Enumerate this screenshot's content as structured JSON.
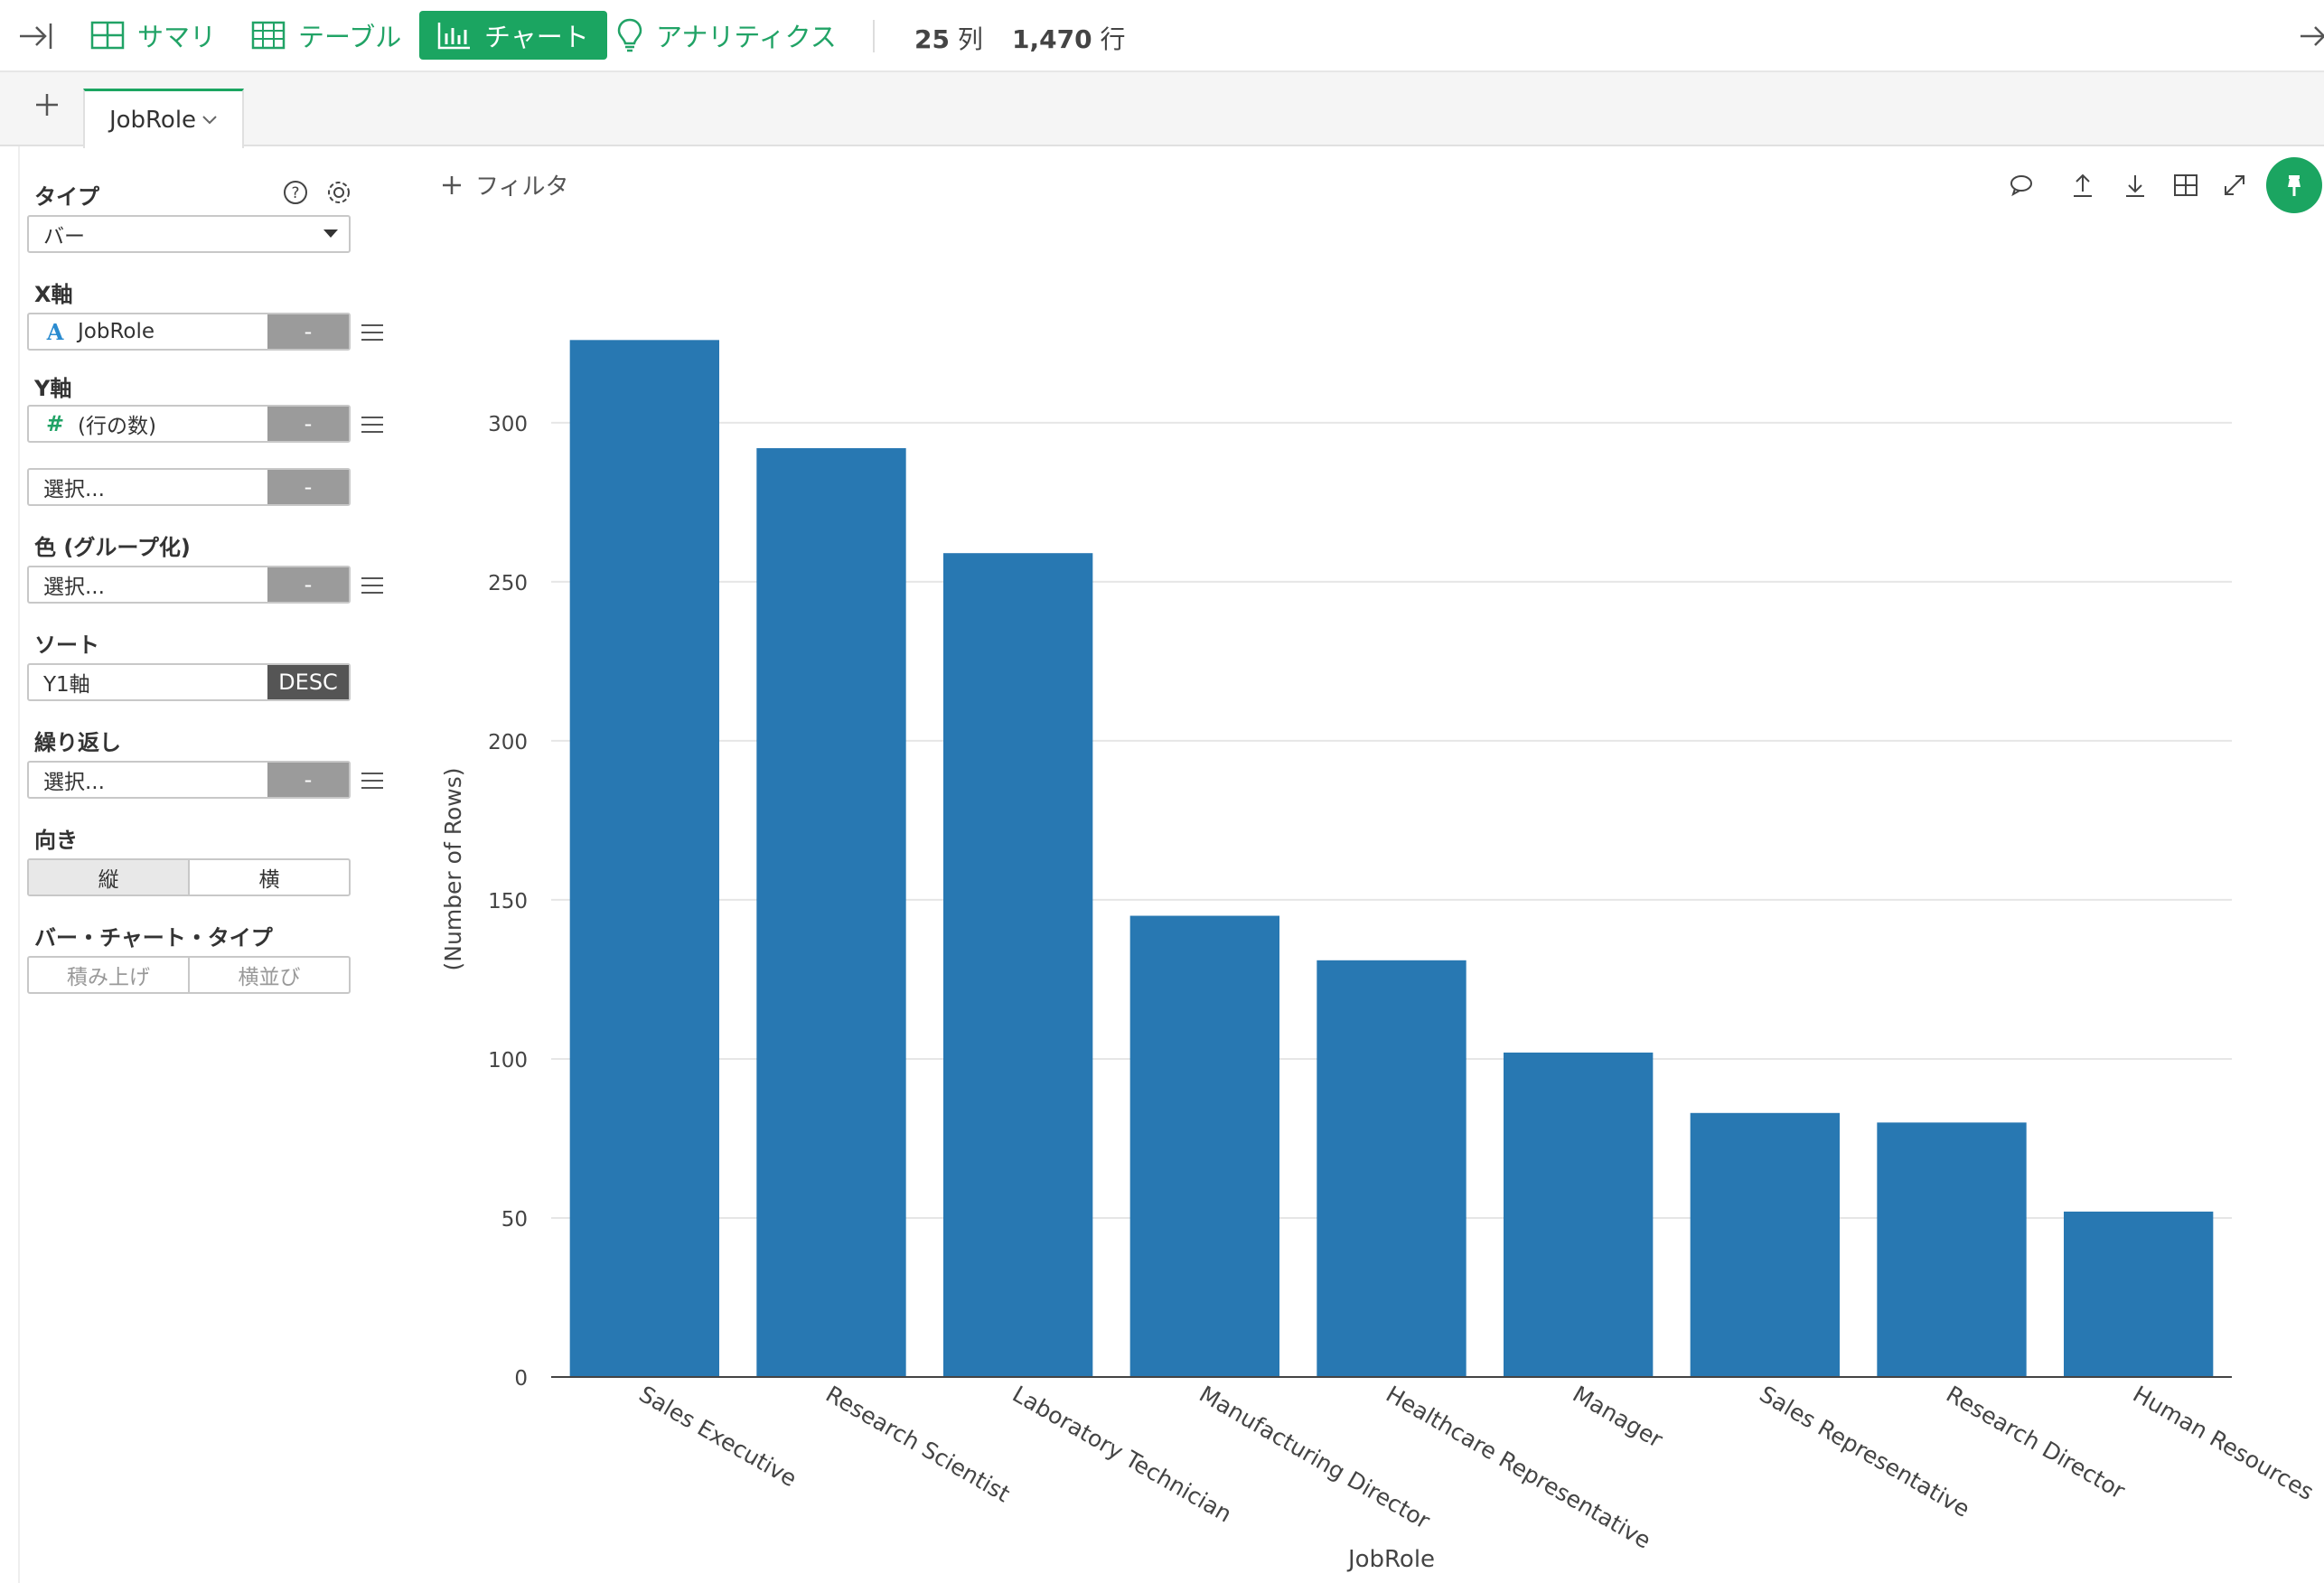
{
  "toolbar": {
    "summary": "サマリ",
    "table": "テーブル",
    "chart": "チャート",
    "analytics": "アナリティクス",
    "columns_num": "25",
    "columns_unit": "列",
    "rows_num": "1,470",
    "rows_unit": "行"
  },
  "tabs": [
    {
      "label": "JobRole"
    }
  ],
  "sidebar": {
    "type_label": "タイプ",
    "type_value": "バー",
    "x_label": "X軸",
    "x_field": "JobRole",
    "x_btn": "-",
    "y_label": "Y軸",
    "y_field": "(行の数)",
    "y_btn": "-",
    "y2_field": "選択...",
    "y2_btn": "-",
    "color_label": "色 (グループ化)",
    "color_field": "選択...",
    "color_btn": "-",
    "sort_label": "ソート",
    "sort_field": "Y1軸",
    "sort_order": "DESC",
    "repeat_label": "繰り返し",
    "repeat_field": "選択...",
    "repeat_btn": "-",
    "orientation_label": "向き",
    "orientation_options": [
      "縦",
      "横"
    ],
    "bar_type_label": "バー・チャート・タイプ",
    "bar_type_options": [
      "積み上げ",
      "横並び"
    ]
  },
  "filter_label": "フィルタ",
  "colors": {
    "accent": "#1ba561",
    "bar": "#2878b2"
  },
  "chart_data": {
    "type": "bar",
    "categories": [
      "Sales Executive",
      "Research Scientist",
      "Laboratory Technician",
      "Manufacturing Director",
      "Healthcare Representative",
      "Manager",
      "Sales Representative",
      "Research Director",
      "Human Resources"
    ],
    "series": [
      {
        "values": [
          326,
          292,
          259,
          145,
          131,
          102,
          83,
          80,
          52
        ]
      }
    ],
    "xlabel": "JobRole",
    "ylabel": "(Number of Rows)",
    "ylim": [
      0,
      342
    ],
    "yticks": [
      0,
      50,
      100,
      150,
      200,
      250,
      300
    ],
    "grid": true
  }
}
